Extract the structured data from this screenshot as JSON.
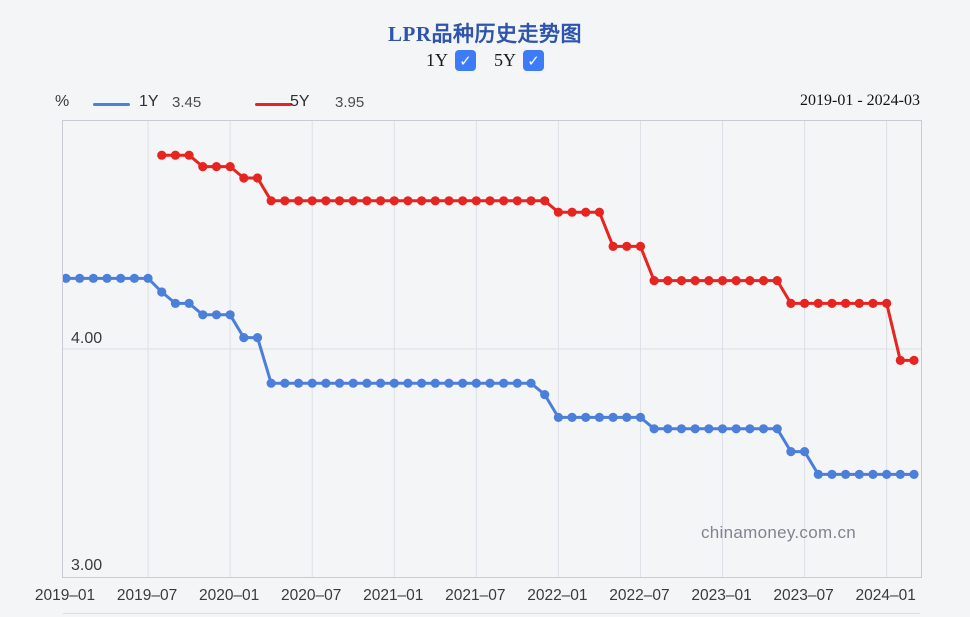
{
  "title": "LPR品种历史走势图",
  "colors": {
    "accent_blue": "#3d7cf6",
    "series_1y": "#4b7fd9",
    "series_5y": "#e62420",
    "gridline": "#dcdfe6",
    "plot_border": "#c7cbd4"
  },
  "icons": {
    "check": "✓"
  },
  "toggles": [
    {
      "label": "1Y",
      "checked": true
    },
    {
      "label": "5Y",
      "checked": true
    }
  ],
  "legend": {
    "percent_label": "%",
    "items": [
      {
        "name": "1Y",
        "value": "3.45",
        "color": "#4b7fd9"
      },
      {
        "name": "5Y",
        "value": "3.95",
        "color": "#e62420"
      }
    ]
  },
  "date_range": "2019-01 - 2024-03",
  "watermark": "chinamoney.com.cn",
  "chart_data": {
    "type": "line",
    "title": "LPR品种历史走势图",
    "ylabel": "%",
    "x_start": "2019-01",
    "x_end": "2024-03",
    "months_total": 63,
    "ylim": [
      3.0,
      5.0
    ],
    "y_gridlines": [
      4.0
    ],
    "y_tick_labels": [
      "3.00",
      "4.00"
    ],
    "x_tick_labels": [
      "2019–01",
      "2019–07",
      "2020–01",
      "2020–07",
      "2021–01",
      "2021–07",
      "2022–01",
      "2022–07",
      "2023–01",
      "2023–07",
      "2024–01"
    ],
    "x_tick_month_index": [
      0,
      6,
      12,
      18,
      24,
      30,
      36,
      42,
      48,
      54,
      60
    ],
    "legend_position": "top-left",
    "grid": "vertical-6-month",
    "series": [
      {
        "name": "1Y",
        "color": "#4b7fd9",
        "start_month_index": 0,
        "latest_value": 3.45,
        "values": [
          4.31,
          4.31,
          4.31,
          4.31,
          4.31,
          4.31,
          4.31,
          4.25,
          4.2,
          4.2,
          4.15,
          4.15,
          4.15,
          4.05,
          4.05,
          3.85,
          3.85,
          3.85,
          3.85,
          3.85,
          3.85,
          3.85,
          3.85,
          3.85,
          3.85,
          3.85,
          3.85,
          3.85,
          3.85,
          3.85,
          3.85,
          3.85,
          3.85,
          3.85,
          3.85,
          3.8,
          3.7,
          3.7,
          3.7,
          3.7,
          3.7,
          3.7,
          3.7,
          3.65,
          3.65,
          3.65,
          3.65,
          3.65,
          3.65,
          3.65,
          3.65,
          3.65,
          3.65,
          3.55,
          3.55,
          3.45,
          3.45,
          3.45,
          3.45,
          3.45,
          3.45,
          3.45,
          3.45
        ]
      },
      {
        "name": "5Y",
        "color": "#e62420",
        "start_month_index": 7,
        "latest_value": 3.95,
        "values": [
          4.85,
          4.85,
          4.85,
          4.8,
          4.8,
          4.8,
          4.75,
          4.75,
          4.65,
          4.65,
          4.65,
          4.65,
          4.65,
          4.65,
          4.65,
          4.65,
          4.65,
          4.65,
          4.65,
          4.65,
          4.65,
          4.65,
          4.65,
          4.65,
          4.65,
          4.65,
          4.65,
          4.65,
          4.65,
          4.6,
          4.6,
          4.6,
          4.6,
          4.45,
          4.45,
          4.45,
          4.3,
          4.3,
          4.3,
          4.3,
          4.3,
          4.3,
          4.3,
          4.3,
          4.3,
          4.3,
          4.2,
          4.2,
          4.2,
          4.2,
          4.2,
          4.2,
          4.2,
          4.2,
          3.95,
          3.95
        ]
      }
    ]
  }
}
